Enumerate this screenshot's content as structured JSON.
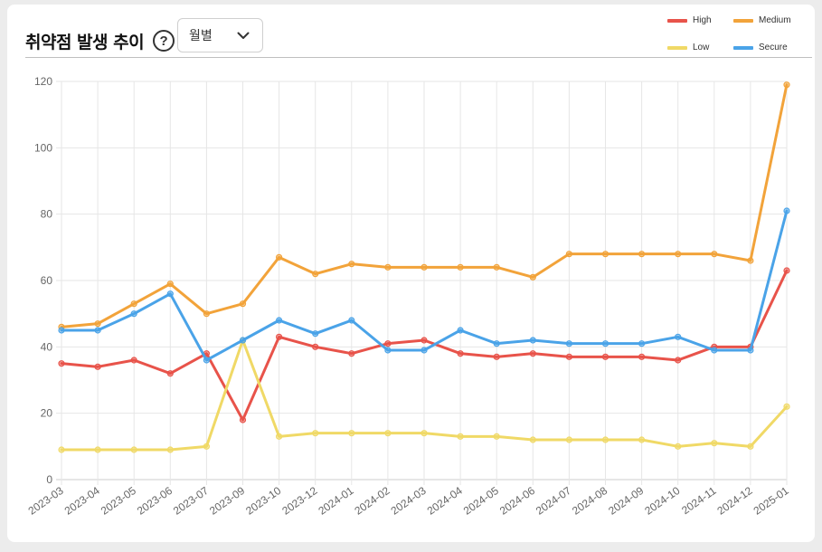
{
  "header": {
    "title": "취약점 발생 추이",
    "help_symbol": "?",
    "period_select": {
      "value": "월별"
    }
  },
  "chart_data": {
    "type": "line",
    "title": "취약점 발생 추이",
    "xlabel": "",
    "ylabel": "",
    "ylim": [
      0,
      120
    ],
    "yticks": [
      0,
      20,
      40,
      60,
      80,
      100,
      120
    ],
    "grid": true,
    "legend_position": "top-right",
    "categories": [
      "2023-03",
      "2023-04",
      "2023-05",
      "2023-06",
      "2023-07",
      "2023-09",
      "2023-10",
      "2023-12",
      "2024-01",
      "2024-02",
      "2024-03",
      "2024-04",
      "2024-05",
      "2024-06",
      "2024-07",
      "2024-08",
      "2024-09",
      "2024-10",
      "2024-11",
      "2024-12",
      "2025-01"
    ],
    "series": [
      {
        "name": "High",
        "color": "#e8534a",
        "values": [
          35,
          34,
          36,
          32,
          38,
          18,
          43,
          40,
          38,
          41,
          42,
          38,
          37,
          38,
          37,
          37,
          37,
          36,
          40,
          40,
          63
        ]
      },
      {
        "name": "Medium",
        "color": "#f2a33a",
        "values": [
          46,
          47,
          53,
          59,
          50,
          53,
          67,
          62,
          65,
          64,
          64,
          64,
          64,
          61,
          68,
          68,
          68,
          68,
          68,
          66,
          119
        ]
      },
      {
        "name": "Low",
        "color": "#f0d966",
        "values": [
          9,
          9,
          9,
          9,
          10,
          42,
          13,
          14,
          14,
          14,
          14,
          13,
          13,
          12,
          12,
          12,
          12,
          10,
          11,
          10,
          22
        ]
      },
      {
        "name": "Secure",
        "color": "#4aa3e8",
        "values": [
          45,
          45,
          50,
          56,
          36,
          42,
          48,
          44,
          48,
          39,
          39,
          45,
          41,
          42,
          41,
          41,
          41,
          43,
          39,
          39,
          81
        ]
      }
    ]
  }
}
